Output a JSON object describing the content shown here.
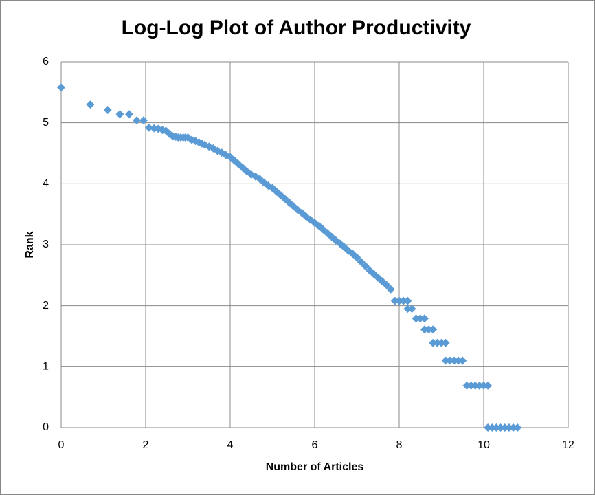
{
  "chart_data": {
    "type": "scatter",
    "title": "Log-Log Plot of Author Productivity",
    "x_label": "Number of Articles",
    "y_label": "Rank",
    "xlim": [
      0,
      12
    ],
    "xticks": [
      0,
      2,
      4,
      6,
      8,
      10,
      12
    ],
    "ylim": [
      0,
      6
    ],
    "yticks": [
      0,
      1,
      2,
      3,
      4,
      5,
      6
    ],
    "grid": true,
    "color": "#5b9bd5",
    "x": [
      0,
      0.69,
      1.1,
      1.39,
      1.61,
      1.79,
      1.95,
      2.08,
      2.2,
      2.3,
      2.4,
      2.48,
      2.56,
      2.64,
      2.71,
      2.77,
      2.83,
      2.89,
      2.94,
      3.0,
      3.09,
      3.18,
      3.26,
      3.33,
      3.4,
      3.5,
      3.6,
      3.7,
      3.8,
      3.9,
      4.0,
      4.1,
      4.2,
      4.3,
      4.4,
      4.5,
      4.6,
      4.7,
      4.8,
      4.9,
      5.0,
      5.1,
      5.2,
      5.3,
      5.4,
      5.5,
      5.6,
      5.7,
      5.8,
      5.9,
      6.0,
      6.1,
      6.2,
      6.3,
      6.4,
      6.5,
      6.6,
      6.7,
      6.8,
      6.9,
      7.0,
      7.1,
      7.2,
      7.3,
      7.4,
      7.5,
      7.6,
      7.7,
      7.8,
      7.9,
      8.0,
      8.1,
      8.2,
      8.2,
      8.3,
      8.4,
      8.5,
      8.6,
      8.6,
      8.7,
      8.8,
      8.8,
      8.9,
      9.0,
      9.1,
      9.1,
      9.2,
      9.3,
      9.4,
      9.5,
      9.6,
      9.7,
      9.8,
      9.9,
      10.0,
      10.1,
      10.1,
      10.2,
      10.3,
      10.4,
      10.5,
      10.6,
      10.7,
      10.8
    ],
    "values": [
      5.58,
      5.3,
      5.21,
      5.14,
      5.14,
      5.04,
      5.04,
      4.92,
      4.91,
      4.9,
      4.88,
      4.87,
      4.82,
      4.78,
      4.77,
      4.76,
      4.76,
      4.76,
      4.76,
      4.76,
      4.72,
      4.7,
      4.68,
      4.66,
      4.64,
      4.61,
      4.58,
      4.54,
      4.51,
      4.47,
      4.44,
      4.38,
      4.32,
      4.26,
      4.2,
      4.15,
      4.12,
      4.08,
      4.02,
      3.97,
      3.93,
      3.87,
      3.81,
      3.75,
      3.69,
      3.63,
      3.57,
      3.52,
      3.46,
      3.41,
      3.36,
      3.31,
      3.25,
      3.19,
      3.13,
      3.07,
      3.02,
      2.96,
      2.9,
      2.85,
      2.79,
      2.72,
      2.65,
      2.58,
      2.52,
      2.46,
      2.4,
      2.34,
      2.27,
      2.08,
      2.08,
      2.08,
      2.08,
      1.95,
      1.95,
      1.79,
      1.79,
      1.79,
      1.61,
      1.61,
      1.61,
      1.39,
      1.39,
      1.39,
      1.39,
      1.1,
      1.1,
      1.1,
      1.1,
      1.1,
      0.69,
      0.69,
      0.69,
      0.69,
      0.69,
      0.69,
      0,
      0,
      0,
      0,
      0,
      0,
      0,
      0
    ]
  }
}
